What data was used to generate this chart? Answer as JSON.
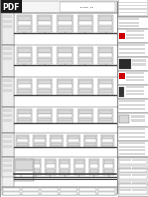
{
  "bg_color": "#ffffff",
  "page_bg": "#f8f8f8",
  "pdf_badge_color": "#1a1a1a",
  "pdf_text_color": "#ffffff",
  "line_color": "#666666",
  "heavy_line_color": "#444444",
  "box_face": "#efefef",
  "box_face2": "#e0e0e0",
  "red_color": "#cc0000",
  "dark_color": "#222222",
  "light_gray": "#d8d8d8",
  "medium_gray": "#aaaaaa",
  "white": "#ffffff",
  "right_bg": "#f2f2f2",
  "title": "Main Clean Earthing Schematic Diagram"
}
